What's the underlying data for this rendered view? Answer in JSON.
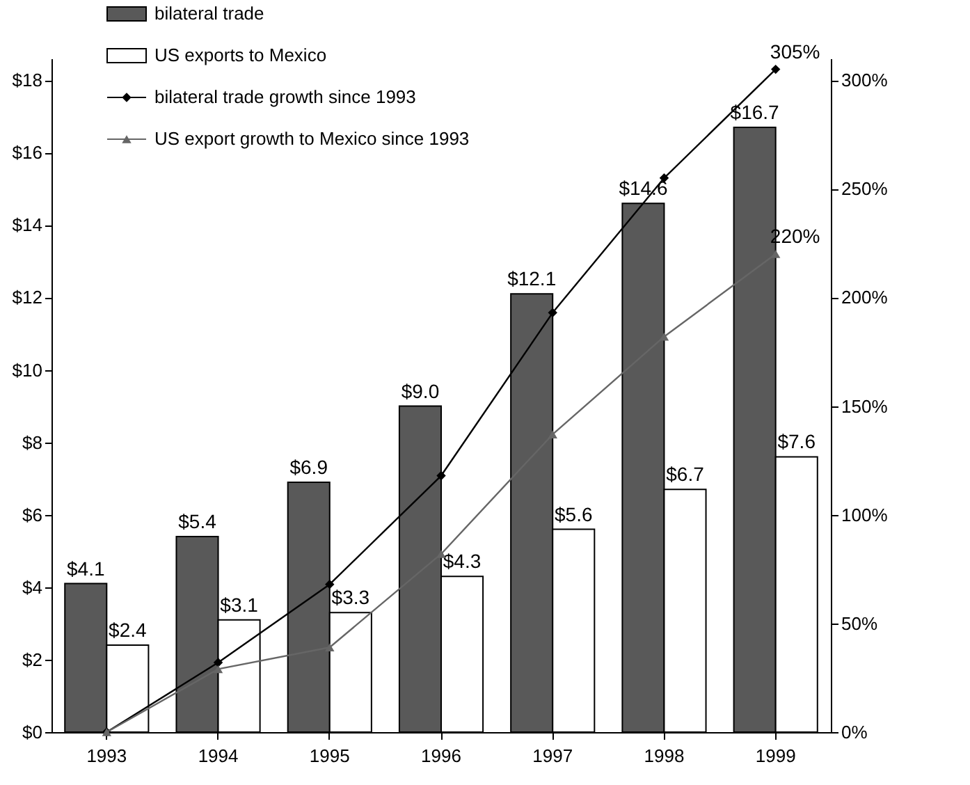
{
  "chart_data": {
    "type": "bar",
    "categories": [
      "1993",
      "1994",
      "1995",
      "1996",
      "1997",
      "1998",
      "1999"
    ],
    "series": [
      {
        "name": "bilateral trade",
        "type": "bar",
        "color": "#595959",
        "values": [
          4.1,
          5.4,
          6.9,
          9.0,
          12.1,
          14.6,
          16.7
        ],
        "value_labels": [
          "$4.1",
          "$5.4",
          "$6.9",
          "$9.0",
          "$12.1",
          "$14.6",
          "$16.7"
        ]
      },
      {
        "name": "US exports to Mexico",
        "type": "bar",
        "color": "#ffffff",
        "values": [
          2.4,
          3.1,
          3.3,
          4.3,
          5.6,
          6.7,
          7.6
        ],
        "value_labels": [
          "$2.4",
          "$3.1",
          "$3.3",
          "$4.3",
          "$5.6",
          "$6.7",
          "$7.6"
        ]
      },
      {
        "name": "bilateral trade growth since 1993",
        "type": "line",
        "axis": "y2",
        "color": "#000000",
        "marker": "diamond",
        "values": [
          0,
          32,
          68,
          118,
          193,
          255,
          305
        ],
        "value_labels": [
          null,
          null,
          null,
          null,
          null,
          null,
          "305%"
        ]
      },
      {
        "name": "US export growth to Mexico since 1993",
        "type": "line",
        "axis": "y2",
        "color": "#666666",
        "marker": "triangle",
        "values": [
          0,
          29,
          39,
          82,
          137,
          182,
          220
        ],
        "value_labels": [
          null,
          null,
          null,
          null,
          null,
          null,
          "220%"
        ]
      }
    ],
    "ylim": [
      0,
      18.6
    ],
    "yticks": [
      {
        "value": 0,
        "label": "$0"
      },
      {
        "value": 2,
        "label": "$2"
      },
      {
        "value": 4,
        "label": "$4"
      },
      {
        "value": 6,
        "label": "$6"
      },
      {
        "value": 8,
        "label": "$8"
      },
      {
        "value": 10,
        "label": "$10"
      },
      {
        "value": 12,
        "label": "$12"
      },
      {
        "value": 14,
        "label": "$14"
      },
      {
        "value": 16,
        "label": "$16"
      },
      {
        "value": 18,
        "label": "$18"
      }
    ],
    "y2lim": [
      0,
      310
    ],
    "y2ticks": [
      {
        "value": 0,
        "label": "0%"
      },
      {
        "value": 50,
        "label": "50%"
      },
      {
        "value": 100,
        "label": "100%"
      },
      {
        "value": 150,
        "label": "150%"
      },
      {
        "value": 200,
        "label": "200%"
      },
      {
        "value": 250,
        "label": "250%"
      },
      {
        "value": 300,
        "label": "300%"
      }
    ],
    "legend": "top left",
    "grid": false
  }
}
